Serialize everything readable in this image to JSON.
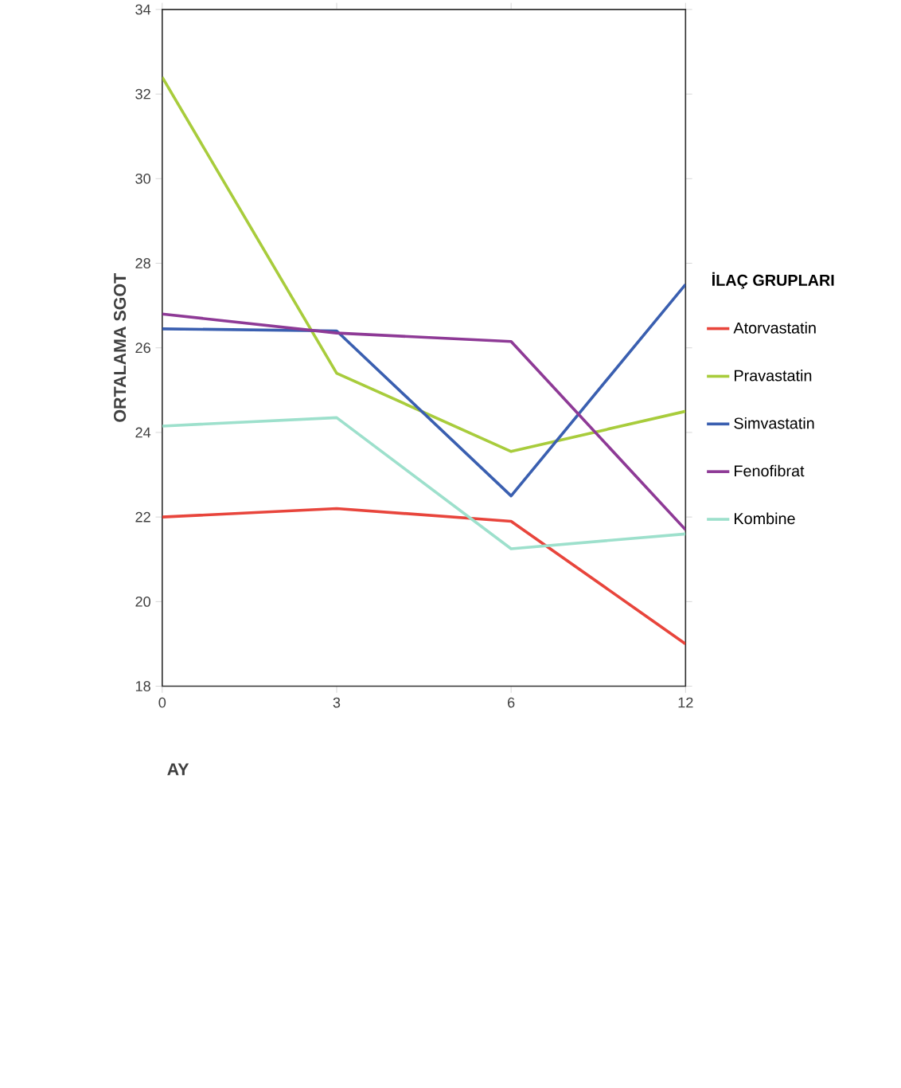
{
  "chart_data": {
    "type": "line",
    "xlabel": "AY",
    "ylabel": "ORTALAMA SGOT",
    "legend_title": "İLAÇ GRUPLARI",
    "categories": [
      "0",
      "3",
      "6",
      "12"
    ],
    "ylim": [
      18,
      34
    ],
    "yticks": [
      18,
      20,
      22,
      24,
      26,
      28,
      30,
      32,
      34
    ],
    "legend": "right",
    "grid": false,
    "marker": "none",
    "line_style": "solid",
    "series": [
      {
        "name": "Atorvastatin",
        "color": "#e8453c",
        "values": [
          22.0,
          22.2,
          21.9,
          19.0
        ]
      },
      {
        "name": "Pravastatin",
        "color": "#a8cc3c",
        "values": [
          32.4,
          25.4,
          23.55,
          24.5
        ]
      },
      {
        "name": "Simvastatin",
        "color": "#3a5fb0",
        "values": [
          26.45,
          26.4,
          22.5,
          27.5
        ]
      },
      {
        "name": "Fenofibrat",
        "color": "#8e3a96",
        "values": [
          26.8,
          26.35,
          26.15,
          21.7
        ]
      },
      {
        "name": "Kombine",
        "color": "#9de0cc",
        "values": [
          24.15,
          24.35,
          21.25,
          21.6
        ]
      }
    ]
  }
}
